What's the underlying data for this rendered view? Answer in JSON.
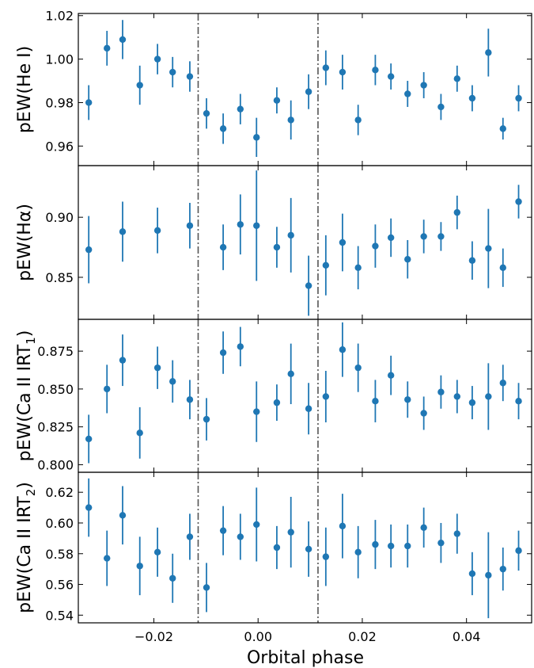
{
  "xlabel": "Orbital phase",
  "x_ticks": [
    -0.02,
    0.0,
    0.02,
    0.04
  ],
  "x_tick_labels": [
    "−0.02",
    "0.00",
    "0.02",
    "0.04"
  ],
  "xlim": [
    -0.0345,
    0.0525
  ],
  "vlines": [
    -0.0115,
    0.0115
  ],
  "colors": {
    "marker": "#1f77b4",
    "vline": "#555555",
    "axis": "#000000"
  },
  "chart_data": [
    {
      "type": "scatter",
      "ylabel": "pEW(He I)",
      "ylim": [
        0.951,
        1.021
      ],
      "y_ticks": [
        0.96,
        0.98,
        1.0,
        1.02
      ],
      "y_tick_labels": [
        "0.96",
        "0.98",
        "1.00",
        "1.02"
      ],
      "points": [
        {
          "x": -0.0325,
          "y": 0.98,
          "err": 0.008
        },
        {
          "x": -0.029,
          "y": 1.005,
          "err": 0.008
        },
        {
          "x": -0.026,
          "y": 1.009,
          "err": 0.009
        },
        {
          "x": -0.0227,
          "y": 0.988,
          "err": 0.009
        },
        {
          "x": -0.0193,
          "y": 1.0,
          "err": 0.007
        },
        {
          "x": -0.0164,
          "y": 0.994,
          "err": 0.007
        },
        {
          "x": -0.0131,
          "y": 0.992,
          "err": 0.007
        },
        {
          "x": -0.0099,
          "y": 0.975,
          "err": 0.007
        },
        {
          "x": -0.0067,
          "y": 0.968,
          "err": 0.007
        },
        {
          "x": -0.0034,
          "y": 0.977,
          "err": 0.007
        },
        {
          "x": -0.0003,
          "y": 0.964,
          "err": 0.009
        },
        {
          "x": 0.0036,
          "y": 0.981,
          "err": 0.006
        },
        {
          "x": 0.0063,
          "y": 0.972,
          "err": 0.009
        },
        {
          "x": 0.0097,
          "y": 0.985,
          "err": 0.008
        },
        {
          "x": 0.013,
          "y": 0.996,
          "err": 0.008
        },
        {
          "x": 0.0162,
          "y": 0.994,
          "err": 0.008
        },
        {
          "x": 0.0192,
          "y": 0.972,
          "err": 0.007
        },
        {
          "x": 0.0225,
          "y": 0.995,
          "err": 0.007
        },
        {
          "x": 0.0255,
          "y": 0.992,
          "err": 0.006
        },
        {
          "x": 0.0287,
          "y": 0.984,
          "err": 0.006
        },
        {
          "x": 0.0318,
          "y": 0.988,
          "err": 0.006
        },
        {
          "x": 0.0351,
          "y": 0.978,
          "err": 0.006
        },
        {
          "x": 0.0382,
          "y": 0.991,
          "err": 0.006
        },
        {
          "x": 0.0411,
          "y": 0.982,
          "err": 0.006
        },
        {
          "x": 0.0442,
          "y": 1.003,
          "err": 0.011
        },
        {
          "x": 0.047,
          "y": 0.968,
          "err": 0.005
        },
        {
          "x": 0.05,
          "y": 0.982,
          "err": 0.006
        }
      ]
    },
    {
      "type": "scatter",
      "ylabel": "pEW(Hα)",
      "ylim": [
        0.815,
        0.943
      ],
      "y_ticks": [
        0.85,
        0.9
      ],
      "y_tick_labels": [
        "0.85",
        "0.90"
      ],
      "points": [
        {
          "x": -0.0325,
          "y": 0.873,
          "err": 0.028
        },
        {
          "x": -0.026,
          "y": 0.888,
          "err": 0.025
        },
        {
          "x": -0.0193,
          "y": 0.889,
          "err": 0.019
        },
        {
          "x": -0.0131,
          "y": 0.893,
          "err": 0.019
        },
        {
          "x": -0.0067,
          "y": 0.875,
          "err": 0.019
        },
        {
          "x": -0.0034,
          "y": 0.894,
          "err": 0.025
        },
        {
          "x": -0.0003,
          "y": 0.893,
          "err": 0.046
        },
        {
          "x": 0.0036,
          "y": 0.875,
          "err": 0.017
        },
        {
          "x": 0.0063,
          "y": 0.885,
          "err": 0.031
        },
        {
          "x": 0.0097,
          "y": 0.843,
          "err": 0.025
        },
        {
          "x": 0.013,
          "y": 0.86,
          "err": 0.025
        },
        {
          "x": 0.0162,
          "y": 0.879,
          "err": 0.024
        },
        {
          "x": 0.0192,
          "y": 0.858,
          "err": 0.018
        },
        {
          "x": 0.0225,
          "y": 0.876,
          "err": 0.018
        },
        {
          "x": 0.0255,
          "y": 0.883,
          "err": 0.016
        },
        {
          "x": 0.0287,
          "y": 0.865,
          "err": 0.016
        },
        {
          "x": 0.0318,
          "y": 0.884,
          "err": 0.014
        },
        {
          "x": 0.0351,
          "y": 0.884,
          "err": 0.012
        },
        {
          "x": 0.0382,
          "y": 0.904,
          "err": 0.014
        },
        {
          "x": 0.0411,
          "y": 0.864,
          "err": 0.016
        },
        {
          "x": 0.0442,
          "y": 0.874,
          "err": 0.033
        },
        {
          "x": 0.047,
          "y": 0.858,
          "err": 0.016
        },
        {
          "x": 0.05,
          "y": 0.913,
          "err": 0.014
        }
      ]
    },
    {
      "type": "scatter",
      "ylabel": "pEW(Ca II IRT",
      "ylabel_sub": "1",
      "ylabel_end": ")",
      "ylim": [
        0.795,
        0.896
      ],
      "y_ticks": [
        0.8,
        0.825,
        0.85,
        0.875
      ],
      "y_tick_labels": [
        "0.800",
        "0.825",
        "0.850",
        "0.875"
      ],
      "points": [
        {
          "x": -0.0325,
          "y": 0.817,
          "err": 0.016
        },
        {
          "x": -0.029,
          "y": 0.85,
          "err": 0.016
        },
        {
          "x": -0.026,
          "y": 0.869,
          "err": 0.017
        },
        {
          "x": -0.0227,
          "y": 0.821,
          "err": 0.017
        },
        {
          "x": -0.0193,
          "y": 0.864,
          "err": 0.014
        },
        {
          "x": -0.0164,
          "y": 0.855,
          "err": 0.014
        },
        {
          "x": -0.0131,
          "y": 0.843,
          "err": 0.013
        },
        {
          "x": -0.0099,
          "y": 0.83,
          "err": 0.014
        },
        {
          "x": -0.0067,
          "y": 0.874,
          "err": 0.014
        },
        {
          "x": -0.0034,
          "y": 0.878,
          "err": 0.013
        },
        {
          "x": -0.0003,
          "y": 0.835,
          "err": 0.02
        },
        {
          "x": 0.0036,
          "y": 0.841,
          "err": 0.012
        },
        {
          "x": 0.0063,
          "y": 0.86,
          "err": 0.02
        },
        {
          "x": 0.0097,
          "y": 0.837,
          "err": 0.017
        },
        {
          "x": 0.013,
          "y": 0.845,
          "err": 0.017
        },
        {
          "x": 0.0162,
          "y": 0.876,
          "err": 0.018
        },
        {
          "x": 0.0192,
          "y": 0.864,
          "err": 0.016
        },
        {
          "x": 0.0225,
          "y": 0.842,
          "err": 0.014
        },
        {
          "x": 0.0255,
          "y": 0.859,
          "err": 0.013
        },
        {
          "x": 0.0287,
          "y": 0.843,
          "err": 0.012
        },
        {
          "x": 0.0318,
          "y": 0.834,
          "err": 0.011
        },
        {
          "x": 0.0351,
          "y": 0.848,
          "err": 0.011
        },
        {
          "x": 0.0382,
          "y": 0.845,
          "err": 0.011
        },
        {
          "x": 0.0411,
          "y": 0.841,
          "err": 0.011
        },
        {
          "x": 0.0442,
          "y": 0.845,
          "err": 0.022
        },
        {
          "x": 0.047,
          "y": 0.854,
          "err": 0.012
        },
        {
          "x": 0.05,
          "y": 0.842,
          "err": 0.012
        }
      ]
    },
    {
      "type": "scatter",
      "ylabel": "pEW(Ca II IRT",
      "ylabel_sub": "2",
      "ylabel_end": ")",
      "ylim": [
        0.535,
        0.633
      ],
      "y_ticks": [
        0.54,
        0.56,
        0.58,
        0.6,
        0.62
      ],
      "y_tick_labels": [
        "0.54",
        "0.56",
        "0.58",
        "0.60",
        "0.62"
      ],
      "points": [
        {
          "x": -0.0325,
          "y": 0.61,
          "err": 0.019
        },
        {
          "x": -0.029,
          "y": 0.577,
          "err": 0.018
        },
        {
          "x": -0.026,
          "y": 0.605,
          "err": 0.019
        },
        {
          "x": -0.0227,
          "y": 0.572,
          "err": 0.019
        },
        {
          "x": -0.0193,
          "y": 0.581,
          "err": 0.016
        },
        {
          "x": -0.0164,
          "y": 0.564,
          "err": 0.016
        },
        {
          "x": -0.0131,
          "y": 0.591,
          "err": 0.015
        },
        {
          "x": -0.0099,
          "y": 0.558,
          "err": 0.016
        },
        {
          "x": -0.0067,
          "y": 0.595,
          "err": 0.016
        },
        {
          "x": -0.0034,
          "y": 0.591,
          "err": 0.015
        },
        {
          "x": -0.0003,
          "y": 0.599,
          "err": 0.024
        },
        {
          "x": 0.0036,
          "y": 0.584,
          "err": 0.014
        },
        {
          "x": 0.0063,
          "y": 0.594,
          "err": 0.023
        },
        {
          "x": 0.0097,
          "y": 0.583,
          "err": 0.018
        },
        {
          "x": 0.013,
          "y": 0.578,
          "err": 0.019
        },
        {
          "x": 0.0162,
          "y": 0.598,
          "err": 0.021
        },
        {
          "x": 0.0192,
          "y": 0.581,
          "err": 0.017
        },
        {
          "x": 0.0225,
          "y": 0.586,
          "err": 0.016
        },
        {
          "x": 0.0255,
          "y": 0.585,
          "err": 0.014
        },
        {
          "x": 0.0287,
          "y": 0.585,
          "err": 0.014
        },
        {
          "x": 0.0318,
          "y": 0.597,
          "err": 0.013
        },
        {
          "x": 0.0351,
          "y": 0.587,
          "err": 0.013
        },
        {
          "x": 0.0382,
          "y": 0.593,
          "err": 0.013
        },
        {
          "x": 0.0411,
          "y": 0.567,
          "err": 0.014
        },
        {
          "x": 0.0442,
          "y": 0.566,
          "err": 0.028
        },
        {
          "x": 0.047,
          "y": 0.57,
          "err": 0.014
        },
        {
          "x": 0.05,
          "y": 0.582,
          "err": 0.013
        }
      ]
    }
  ]
}
